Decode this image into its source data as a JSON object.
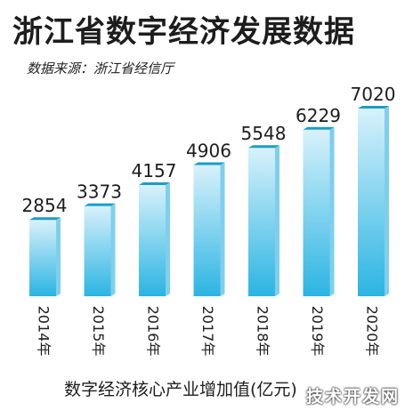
{
  "header": {
    "title": "浙江省数字经济发展数据",
    "source": "数据来源：浙江省经信厅"
  },
  "chart_data": {
    "type": "bar",
    "categories": [
      "2014年",
      "2015年",
      "2016年",
      "2017年",
      "2018年",
      "2019年",
      "2020年"
    ],
    "values": [
      2854,
      3373,
      4157,
      4906,
      5548,
      6229,
      7020
    ],
    "title": "浙江省数字经济发展数据",
    "xlabel": "数字经济核心产业增加值(亿元)",
    "ylabel": "",
    "ylim": [
      0,
      7020
    ],
    "grid": false,
    "legend": "none",
    "colors": {
      "bar_top": "#d8f1fb",
      "bar_bottom": "#2bb4e2",
      "bar_cap": "#1a9cc8",
      "bar_side": "#7ecfee"
    }
  },
  "footer": {
    "caption": "数字经济核心产业增加值(亿元)",
    "watermark": "技术开发网"
  }
}
